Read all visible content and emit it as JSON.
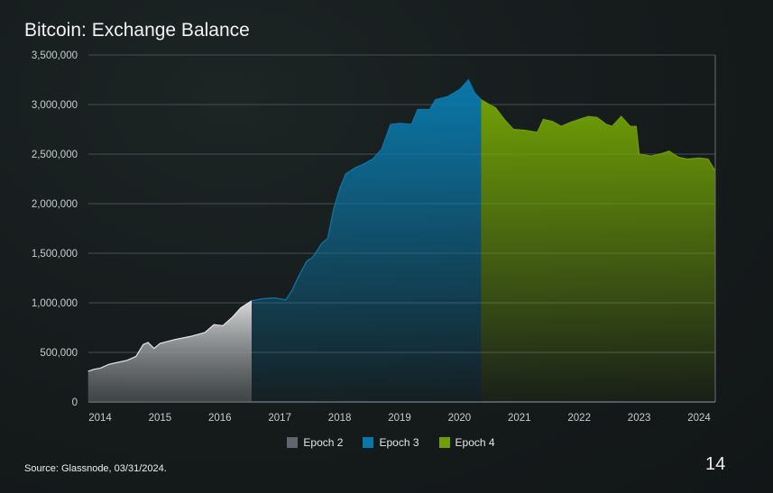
{
  "chart_data": {
    "type": "area",
    "title": "Bitcoin: Exchange Balance",
    "xlabel": "",
    "ylabel": "",
    "ylim": [
      0,
      3500000
    ],
    "xlim": [
      2013.8,
      2024.27
    ],
    "yticks": [
      "0",
      "500,000",
      "1,000,000",
      "1,500,000",
      "2,000,000",
      "2,500,000",
      "3,000,000",
      "3,500,000"
    ],
    "ytick_values": [
      0,
      500000,
      1000000,
      1500000,
      2000000,
      2500000,
      3000000,
      3500000
    ],
    "xticks": [
      "2014",
      "2015",
      "2016",
      "2017",
      "2018",
      "2019",
      "2020",
      "2021",
      "2022",
      "2023",
      "2024"
    ],
    "grid": true,
    "legend_placement": "bottom-center",
    "series": [
      {
        "name": "Epoch 2",
        "color": "#5f6670",
        "points": [
          [
            2013.8,
            310000
          ],
          [
            2013.9,
            330000
          ],
          [
            2014.0,
            340000
          ],
          [
            2014.15,
            380000
          ],
          [
            2014.3,
            400000
          ],
          [
            2014.45,
            420000
          ],
          [
            2014.6,
            460000
          ],
          [
            2014.72,
            580000
          ],
          [
            2014.8,
            600000
          ],
          [
            2014.9,
            540000
          ],
          [
            2015.0,
            590000
          ],
          [
            2015.25,
            630000
          ],
          [
            2015.5,
            660000
          ],
          [
            2015.75,
            700000
          ],
          [
            2015.9,
            780000
          ],
          [
            2016.05,
            770000
          ],
          [
            2016.2,
            850000
          ],
          [
            2016.35,
            950000
          ],
          [
            2016.53,
            1020000
          ]
        ]
      },
      {
        "name": "Epoch 3",
        "color": "#0a78aa",
        "points": [
          [
            2016.53,
            1020000
          ],
          [
            2016.7,
            1040000
          ],
          [
            2016.9,
            1050000
          ],
          [
            2017.1,
            1030000
          ],
          [
            2017.2,
            1120000
          ],
          [
            2017.3,
            1250000
          ],
          [
            2017.45,
            1420000
          ],
          [
            2017.55,
            1460000
          ],
          [
            2017.7,
            1600000
          ],
          [
            2017.8,
            1650000
          ],
          [
            2017.9,
            1950000
          ],
          [
            2018.0,
            2150000
          ],
          [
            2018.1,
            2300000
          ],
          [
            2018.25,
            2360000
          ],
          [
            2018.4,
            2400000
          ],
          [
            2018.55,
            2450000
          ],
          [
            2018.7,
            2550000
          ],
          [
            2018.85,
            2800000
          ],
          [
            2019.0,
            2810000
          ],
          [
            2019.2,
            2800000
          ],
          [
            2019.3,
            2950000
          ],
          [
            2019.5,
            2950000
          ],
          [
            2019.6,
            3050000
          ],
          [
            2019.8,
            3080000
          ],
          [
            2020.0,
            3150000
          ],
          [
            2020.15,
            3250000
          ],
          [
            2020.25,
            3120000
          ],
          [
            2020.36,
            3050000
          ]
        ]
      },
      {
        "name": "Epoch 4",
        "color": "#6f9e06",
        "points": [
          [
            2020.36,
            3050000
          ],
          [
            2020.5,
            3000000
          ],
          [
            2020.6,
            2970000
          ],
          [
            2020.75,
            2850000
          ],
          [
            2020.9,
            2750000
          ],
          [
            2021.1,
            2740000
          ],
          [
            2021.3,
            2720000
          ],
          [
            2021.4,
            2850000
          ],
          [
            2021.55,
            2830000
          ],
          [
            2021.7,
            2780000
          ],
          [
            2021.85,
            2820000
          ],
          [
            2022.0,
            2850000
          ],
          [
            2022.15,
            2880000
          ],
          [
            2022.3,
            2870000
          ],
          [
            2022.45,
            2800000
          ],
          [
            2022.55,
            2780000
          ],
          [
            2022.7,
            2880000
          ],
          [
            2022.85,
            2780000
          ],
          [
            2022.95,
            2780000
          ],
          [
            2023.0,
            2500000
          ],
          [
            2023.2,
            2480000
          ],
          [
            2023.4,
            2510000
          ],
          [
            2023.5,
            2530000
          ],
          [
            2023.65,
            2470000
          ],
          [
            2023.8,
            2450000
          ],
          [
            2024.0,
            2460000
          ],
          [
            2024.15,
            2450000
          ],
          [
            2024.27,
            2330000
          ]
        ]
      }
    ]
  },
  "source": "Source: Glassnode, 03/31/2024.",
  "page_number": "14"
}
